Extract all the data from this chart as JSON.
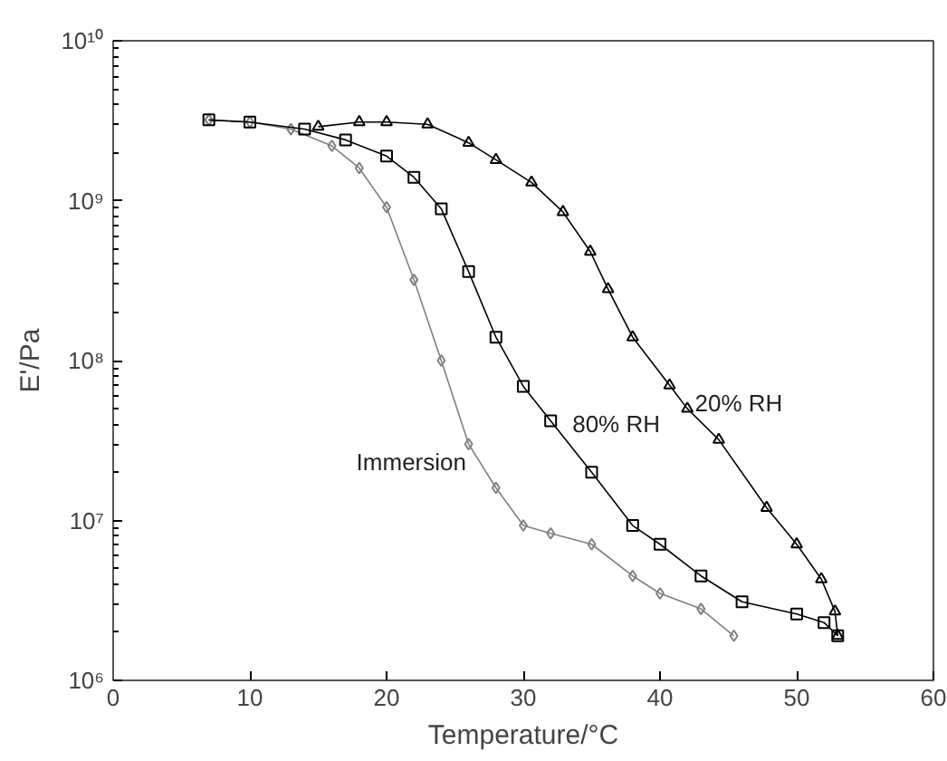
{
  "chart_data": {
    "type": "line",
    "xlabel": "Temperature/°C",
    "ylabel": "E'/Pa",
    "log": "y",
    "grid": false,
    "xlim": [
      0,
      60
    ],
    "xticks": [
      0,
      10,
      20,
      30,
      40,
      50,
      60
    ],
    "ylim": [
      1000000,
      10000000000
    ],
    "yticks": [
      {
        "value": 1000000,
        "label": "10⁶"
      },
      {
        "value": 10000000,
        "label": "10⁷"
      },
      {
        "value": 100000000,
        "label": "10⁸"
      },
      {
        "value": 1000000000,
        "label": "10⁹"
      },
      {
        "value": 10000000000,
        "label": "10¹⁰"
      }
    ],
    "series": [
      {
        "name": "Immersion",
        "color": "#808080",
        "marker": "diamond",
        "x": [
          7,
          10,
          13,
          16,
          18,
          20,
          22,
          24,
          26,
          28,
          30,
          32,
          35,
          38,
          40,
          43,
          45.4
        ],
        "values": [
          3200000000,
          3100000000,
          2800000000,
          2200000000,
          1600000000,
          910000000,
          320000000,
          100000000,
          30000000,
          16000000,
          9300000,
          8300000,
          7100000,
          4500000,
          3500000,
          2800000,
          1900000
        ]
      },
      {
        "name": "80% RH",
        "color": "#000000",
        "marker": "square",
        "x": [
          7,
          10,
          14,
          17,
          20,
          22,
          24,
          26,
          28,
          30,
          32,
          35,
          38,
          40,
          43,
          46,
          50,
          52,
          53
        ],
        "values": [
          3200000000,
          3100000000,
          2800000000,
          2400000000,
          1900000000,
          1400000000,
          890000000,
          360000000,
          140000000,
          69000000,
          42000000,
          20000000,
          9300000,
          7100000,
          4500000,
          3100000,
          2600000,
          2300000,
          1900000
        ]
      },
      {
        "name": "20% RH",
        "color": "#000000",
        "marker": "triangle",
        "x": [
          15,
          18,
          20,
          23,
          26,
          28,
          30.6,
          32.9,
          34.9,
          36.2,
          38,
          40.7,
          42,
          44.3,
          47.8,
          50,
          51.8,
          52.8,
          53
        ],
        "values": [
          2900000000,
          3100000000,
          3100000000,
          3000000000,
          2300000000,
          1800000000,
          1300000000,
          850000000,
          480000000,
          280000000,
          140000000,
          70000000,
          50000000,
          32000000,
          12000000,
          7100000,
          4300000,
          2700000,
          1900000
        ]
      }
    ]
  }
}
